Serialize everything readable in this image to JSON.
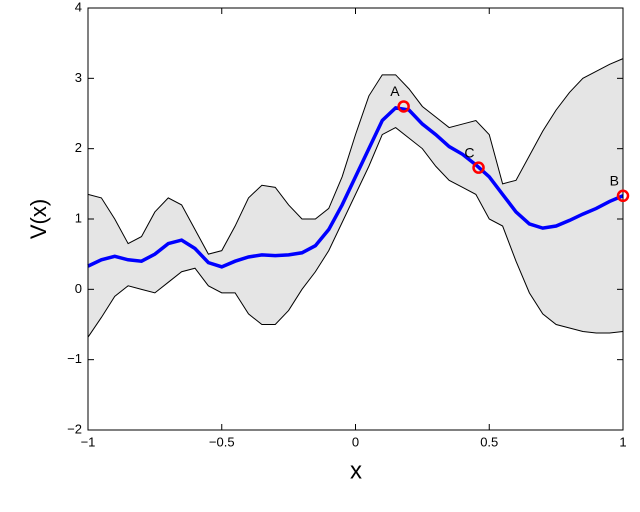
{
  "chart_data": {
    "type": "line",
    "xlabel": "x",
    "ylabel": "V(x)",
    "xlim": [
      -1,
      1
    ],
    "ylim": [
      -2,
      4
    ],
    "xticks": [
      {
        "value": -1,
        "label": "−1"
      },
      {
        "value": -0.5,
        "label": "−0.5"
      },
      0,
      0.5,
      1
    ],
    "yticks": [
      {
        "value": -2,
        "label": "−2"
      },
      {
        "value": -1,
        "label": "−1"
      },
      0,
      1,
      2,
      3,
      4
    ],
    "x": [
      -1,
      -0.95,
      -0.9,
      -0.85,
      -0.8,
      -0.75,
      -0.7,
      -0.65,
      -0.6,
      -0.55,
      -0.5,
      -0.45,
      -0.4,
      -0.35,
      -0.3,
      -0.25,
      -0.2,
      -0.15,
      -0.1,
      -0.05,
      0,
      0.05,
      0.1,
      0.15,
      0.2,
      0.25,
      0.3,
      0.35,
      0.4,
      0.45,
      0.5,
      0.55,
      0.6,
      0.65,
      0.7,
      0.75,
      0.8,
      0.85,
      0.9,
      0.95,
      1
    ],
    "series": [
      {
        "color": "#0000ff",
        "values": [
          0.33,
          0.42,
          0.47,
          0.42,
          0.4,
          0.5,
          0.65,
          0.7,
          0.58,
          0.38,
          0.32,
          0.4,
          0.46,
          0.49,
          0.48,
          0.49,
          0.52,
          0.62,
          0.85,
          1.2,
          1.6,
          2.0,
          2.4,
          2.58,
          2.55,
          2.35,
          2.2,
          2.03,
          1.92,
          1.77,
          1.6,
          1.35,
          1.1,
          0.93,
          0.87,
          0.9,
          0.98,
          1.07,
          1.15,
          1.25,
          1.33
        ]
      }
    ],
    "band": {
      "color": "#e5e5e5",
      "upper": [
        1.35,
        1.3,
        1.0,
        0.65,
        0.75,
        1.1,
        1.3,
        1.2,
        0.85,
        0.5,
        0.55,
        0.9,
        1.3,
        1.48,
        1.45,
        1.2,
        1.0,
        1.0,
        1.15,
        1.6,
        2.2,
        2.75,
        3.05,
        3.05,
        2.85,
        2.6,
        2.45,
        2.3,
        2.35,
        2.4,
        2.2,
        1.5,
        1.55,
        1.9,
        2.25,
        2.55,
        2.8,
        3.0,
        3.1,
        3.2,
        3.28
      ],
      "lower": [
        -0.68,
        -0.4,
        -0.1,
        0.05,
        0.0,
        -0.05,
        0.1,
        0.25,
        0.3,
        0.05,
        -0.05,
        -0.05,
        -0.35,
        -0.5,
        -0.5,
        -0.3,
        0.0,
        0.25,
        0.55,
        0.95,
        1.35,
        1.75,
        2.2,
        2.3,
        2.15,
        2.0,
        1.75,
        1.55,
        1.45,
        1.35,
        1.0,
        0.9,
        0.4,
        -0.05,
        -0.35,
        -0.5,
        -0.55,
        -0.6,
        -0.62,
        -0.62,
        -0.6
      ]
    },
    "points": {
      "color": "#ff0000",
      "labels": [
        "A",
        "C",
        "B"
      ],
      "x": [
        0.18,
        0.46,
        1.0
      ],
      "y": [
        2.6,
        1.73,
        1.33
      ]
    }
  }
}
